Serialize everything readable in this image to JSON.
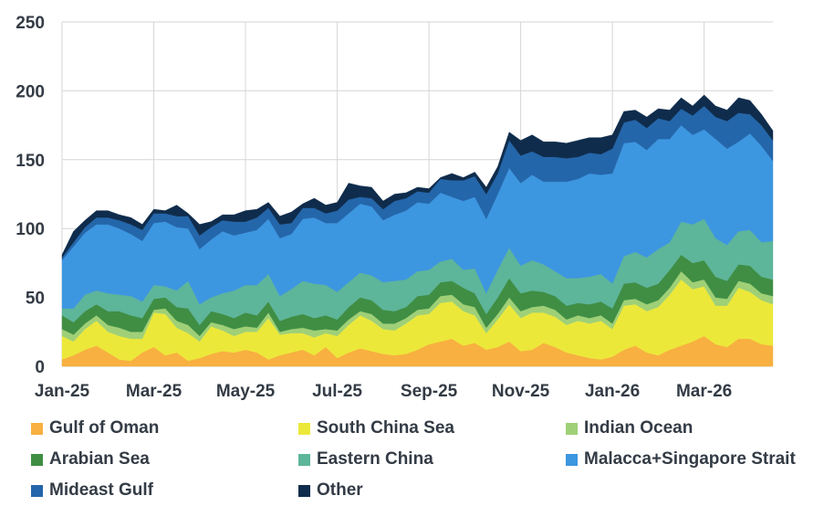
{
  "chart_data": {
    "type": "area",
    "stacked": true,
    "title": "",
    "xlabel": "",
    "ylabel": "",
    "ylim": [
      0,
      250
    ],
    "yticks": [
      0,
      50,
      100,
      150,
      200,
      250
    ],
    "x_tick_labels": [
      "Jan-25",
      "Mar-25",
      "May-25",
      "Jul-25",
      "Sep-25",
      "Nov-25",
      "Jan-26",
      "Mar-26"
    ],
    "x_tick_index": [
      0,
      8,
      16,
      24,
      32,
      40,
      48,
      56
    ],
    "grid": true,
    "legend_position": "bottom",
    "n_points": 63,
    "series": [
      {
        "name": "Gulf of Oman",
        "color": "#f8b040",
        "values": [
          5,
          8,
          12,
          15,
          10,
          5,
          4,
          10,
          14,
          8,
          10,
          4,
          6,
          9,
          11,
          10,
          12,
          10,
          5,
          8,
          10,
          12,
          8,
          14,
          6,
          10,
          13,
          11,
          9,
          8,
          9,
          12,
          16,
          18,
          20,
          15,
          17,
          12,
          14,
          18,
          11,
          12,
          17,
          14,
          10,
          8,
          6,
          5,
          7,
          12,
          15,
          10,
          8,
          12,
          15,
          18,
          22,
          16,
          14,
          20,
          20,
          16,
          15
        ]
      },
      {
        "name": "South China Sea",
        "color": "#ece83a",
        "values": [
          17,
          10,
          15,
          18,
          15,
          17,
          16,
          10,
          25,
          30,
          18,
          20,
          12,
          20,
          15,
          12,
          13,
          15,
          30,
          15,
          14,
          12,
          13,
          10,
          16,
          20,
          24,
          22,
          18,
          18,
          22,
          25,
          22,
          28,
          27,
          25,
          20,
          12,
          20,
          27,
          24,
          27,
          22,
          22,
          20,
          25,
          25,
          28,
          20,
          32,
          30,
          30,
          35,
          40,
          48,
          38,
          36,
          28,
          30,
          37,
          34,
          32,
          30
        ]
      },
      {
        "name": "Indian Ocean",
        "color": "#9fd077",
        "values": [
          5,
          5,
          4,
          4,
          5,
          6,
          5,
          5,
          2,
          4,
          5,
          6,
          4,
          3,
          4,
          5,
          4,
          3,
          4,
          2,
          3,
          4,
          5,
          3,
          4,
          4,
          3,
          5,
          4,
          5,
          4,
          4,
          4,
          5,
          5,
          5,
          6,
          4,
          4,
          5,
          5,
          4,
          5,
          5,
          4,
          4,
          4,
          4,
          4,
          4,
          4,
          5,
          5,
          5,
          6,
          5,
          5,
          6,
          5,
          5,
          6,
          5,
          6
        ]
      },
      {
        "name": "Arabian Sea",
        "color": "#3f8e44",
        "values": [
          10,
          9,
          9,
          8,
          10,
          12,
          12,
          10,
          8,
          8,
          10,
          12,
          8,
          8,
          8,
          8,
          10,
          9,
          8,
          8,
          9,
          10,
          9,
          10,
          8,
          9,
          10,
          10,
          10,
          9,
          8,
          10,
          10,
          10,
          10,
          12,
          10,
          10,
          12,
          14,
          13,
          12,
          10,
          10,
          10,
          9,
          10,
          10,
          11,
          12,
          12,
          12,
          12,
          13,
          12,
          14,
          14,
          15,
          13,
          12,
          13,
          12,
          12
        ]
      },
      {
        "name": "Eastern China",
        "color": "#5db59a",
        "values": [
          5,
          10,
          12,
          10,
          13,
          12,
          14,
          12,
          10,
          8,
          12,
          20,
          15,
          10,
          15,
          20,
          20,
          22,
          20,
          18,
          20,
          24,
          25,
          22,
          20,
          18,
          18,
          18,
          20,
          22,
          20,
          18,
          18,
          15,
          16,
          13,
          18,
          15,
          20,
          22,
          20,
          22,
          20,
          18,
          20,
          18,
          20,
          20,
          18,
          20,
          22,
          22,
          25,
          20,
          24,
          28,
          30,
          28,
          26,
          24,
          26,
          25,
          28
        ]
      },
      {
        "name": "Malacca+Singapore Strait",
        "color": "#3d96e0",
        "values": [
          35,
          45,
          45,
          48,
          50,
          48,
          45,
          44,
          45,
          47,
          46,
          38,
          40,
          42,
          45,
          40,
          38,
          40,
          40,
          42,
          40,
          45,
          48,
          45,
          50,
          50,
          50,
          50,
          45,
          48,
          50,
          50,
          48,
          50,
          45,
          50,
          52,
          54,
          55,
          58,
          60,
          62,
          60,
          65,
          70,
          72,
          75,
          72,
          80,
          82,
          80,
          78,
          80,
          75,
          70,
          65,
          65,
          72,
          70,
          65,
          70,
          70,
          58
        ]
      },
      {
        "name": "Mideast Gulf",
        "color": "#2466aa",
        "values": [
          2,
          3,
          4,
          5,
          5,
          6,
          7,
          8,
          7,
          6,
          8,
          9,
          10,
          9,
          8,
          10,
          8,
          9,
          8,
          10,
          8,
          8,
          7,
          7,
          9,
          10,
          5,
          6,
          8,
          10,
          9,
          8,
          8,
          10,
          12,
          15,
          15,
          18,
          15,
          20,
          20,
          17,
          18,
          18,
          17,
          16,
          15,
          15,
          18,
          15,
          16,
          16,
          15,
          13,
          12,
          14,
          17,
          16,
          20,
          21,
          14,
          15,
          15
        ]
      },
      {
        "name": "Other",
        "color": "#0f2c4c",
        "values": [
          2,
          8,
          5,
          5,
          5,
          4,
          5,
          4,
          3,
          2,
          8,
          2,
          8,
          4,
          4,
          5,
          8,
          6,
          4,
          6,
          8,
          3,
          7,
          6,
          6,
          12,
          8,
          8,
          6,
          5,
          4,
          3,
          3,
          1,
          5,
          2,
          3,
          5,
          5,
          6,
          11,
          12,
          11,
          11,
          11,
          12,
          11,
          12,
          10,
          8,
          7,
          8,
          7,
          8,
          8,
          7,
          8,
          8,
          8,
          11,
          10,
          8,
          7
        ]
      }
    ]
  }
}
